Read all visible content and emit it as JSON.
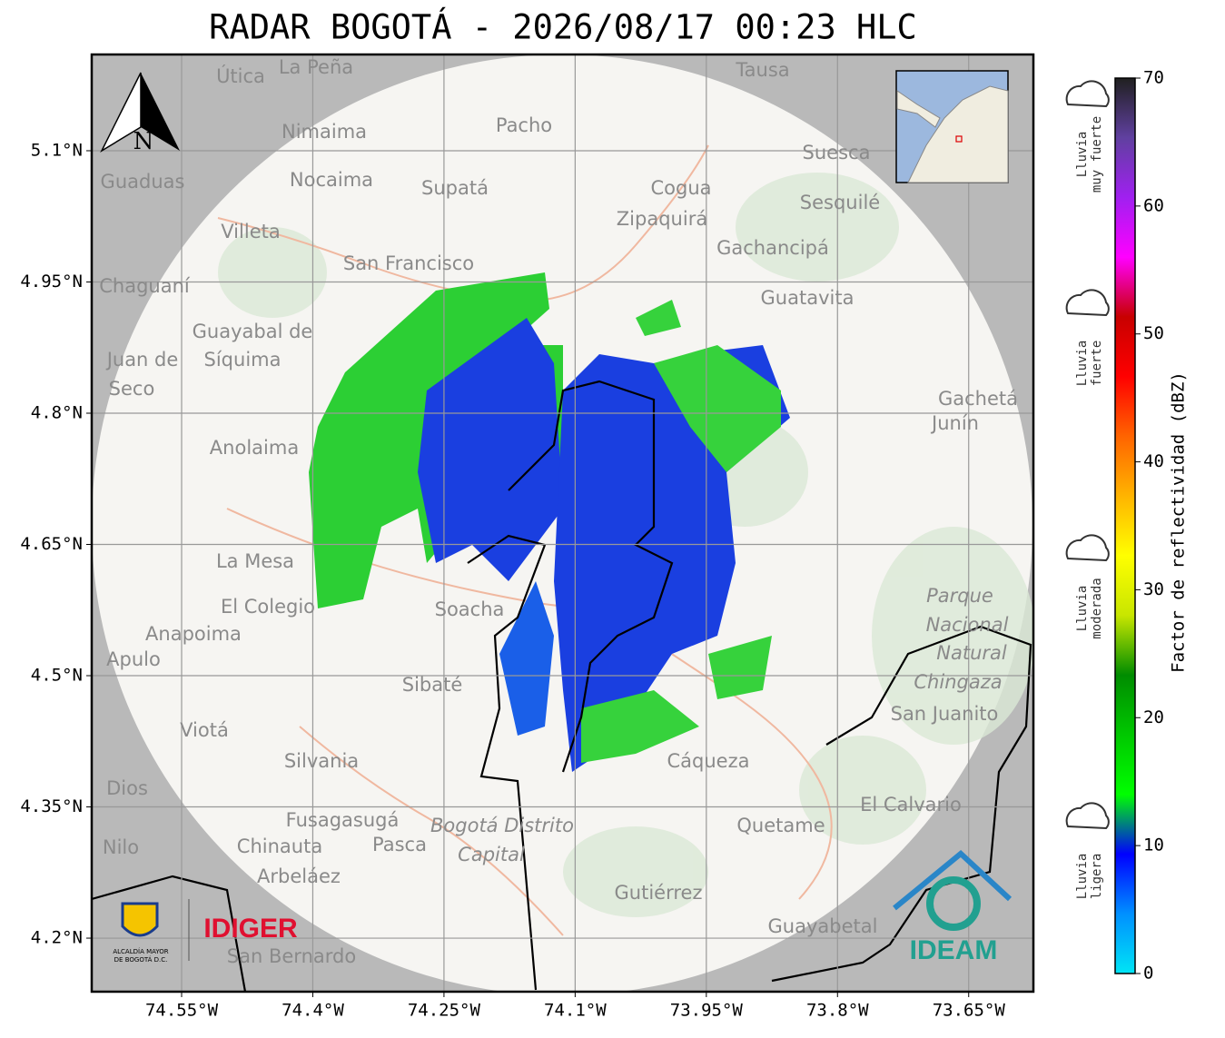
{
  "title": "RADAR BOGOTÁ - 2026/08/17 00:23 HLC",
  "map": {
    "xlim": [
      -74.6528,
      -73.576
    ],
    "ylim": [
      4.1388,
      5.21
    ],
    "xticks": [
      {
        "value": -74.55,
        "label": "74.55°W"
      },
      {
        "value": -74.4,
        "label": "74.4°W"
      },
      {
        "value": -74.25,
        "label": "74.25°W"
      },
      {
        "value": -74.1,
        "label": "74.1°W"
      },
      {
        "value": -73.95,
        "label": "73.95°W"
      },
      {
        "value": -73.8,
        "label": "73.8°W"
      },
      {
        "value": -73.65,
        "label": "73.65°W"
      }
    ],
    "yticks": [
      {
        "value": 5.1,
        "label": "5.1°N"
      },
      {
        "value": 4.95,
        "label": "4.95°N"
      },
      {
        "value": 4.8,
        "label": "4.8°N"
      },
      {
        "value": 4.65,
        "label": "4.65°N"
      },
      {
        "value": 4.5,
        "label": "4.5°N"
      },
      {
        "value": 4.35,
        "label": "4.35°N"
      },
      {
        "value": 4.2,
        "label": "4.2°N"
      }
    ],
    "grid": true,
    "north": "N",
    "places": [
      "Útica",
      "La Peña",
      "Tausa",
      "Nimaima",
      "Pacho",
      "Guaduas",
      "Nocaima",
      "Supatá",
      "Cogua",
      "Suesca",
      "Zipaquirá",
      "Sesquilé",
      "Villeta",
      "Gachancipá",
      "San Francisco",
      "Chaguaní",
      "Guatavita",
      "Guayabal de",
      "Síquima",
      "Juan de",
      "Seco",
      "Gachetá",
      "Junín",
      "Anolaima",
      "La Mesa",
      "El Colegio",
      "Soacha",
      "Anapoima",
      "Apulo",
      "Parque",
      "Nacional",
      "Natural",
      "Chingaza",
      "San Juanito",
      "Sibaté",
      "Viotá",
      "Silvania",
      "Cáqueza",
      "Dios",
      "El Calvario",
      "Fusagasugá",
      "Bogotá Distrito",
      "Capital",
      "Quetame",
      "Nilo",
      "Chinauta",
      "Pasca",
      "Arbeláez",
      "Gutiérrez",
      "Guayabetal",
      "San Bernardo"
    ]
  },
  "colorbar": {
    "label": "Factor de reflectividad (dBZ)",
    "lim": [
      0,
      70
    ],
    "ticks": [
      0,
      10,
      20,
      30,
      40,
      50,
      60,
      70
    ],
    "colors": [
      "#00e5f5",
      "#0090ff",
      "#0000ff",
      "#00ff00",
      "#00c800",
      "#008c00",
      "#c8e600",
      "#ffff00",
      "#ffb400",
      "#ff6400",
      "#ff0000",
      "#c80000",
      "#ff00ff",
      "#a020f0",
      "#6040a0",
      "#202020"
    ]
  },
  "categories": [
    [
      "Lluvia",
      "muy fuerte"
    ],
    [
      "Lluvia",
      "fuerte"
    ],
    [
      "Lluvia",
      "moderada"
    ],
    [
      "Lluvia",
      "ligera"
    ]
  ],
  "logos": {
    "alcaldia": [
      "ALCALDÍA MAYOR",
      "DE BOGOTÁ D.C."
    ],
    "idiger": "IDIGER",
    "ideam": "IDEAM"
  }
}
